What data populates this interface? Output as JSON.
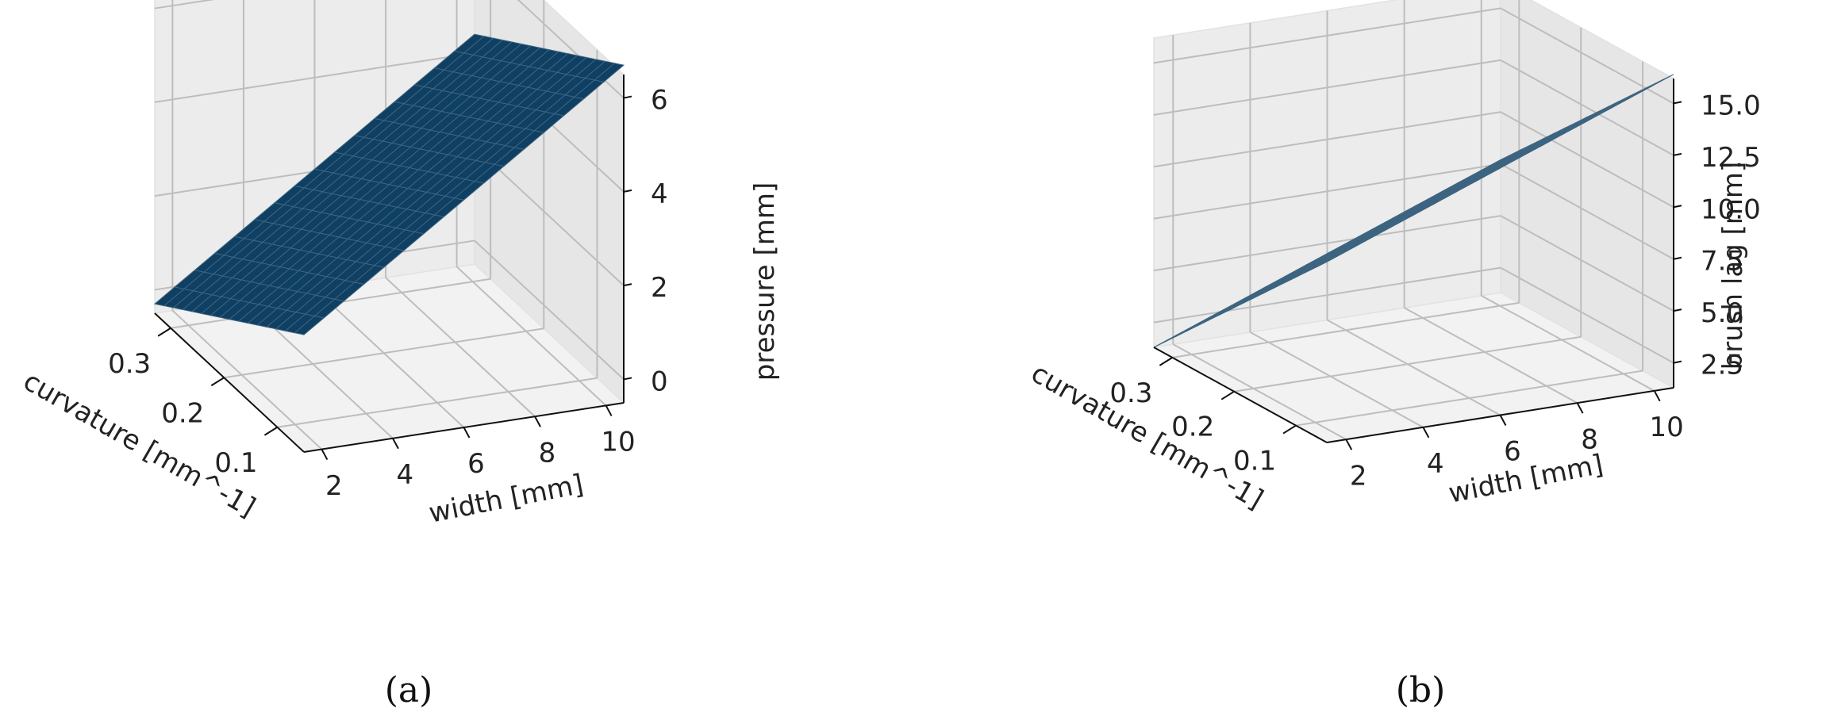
{
  "chart_data": [
    {
      "type": "surface",
      "panel_label": "(a)",
      "x": {
        "label": "curvature [mm^-1]",
        "ticks": [
          "0.1",
          "0.2",
          "0.3"
        ],
        "range": [
          0.05,
          0.33
        ]
      },
      "y": {
        "label": "width [mm]",
        "ticks": [
          "2",
          "4",
          "6",
          "8",
          "10"
        ],
        "range": [
          1.5,
          10.5
        ]
      },
      "z": {
        "label": "pressure [mm]",
        "ticks": [
          "0",
          "2",
          "4",
          "6"
        ],
        "range": [
          -0.5,
          6.5
        ]
      },
      "surface": {
        "corners": [
          {
            "curvature": 0.05,
            "width": 1.5,
            "value": 2.0
          },
          {
            "curvature": 0.33,
            "width": 1.5,
            "value": -0.3
          },
          {
            "curvature": 0.05,
            "width": 10.5,
            "value": 6.7
          },
          {
            "curvature": 0.33,
            "width": 10.5,
            "value": 4.4
          }
        ],
        "color": "#0f3f62"
      },
      "grid": true
    },
    {
      "type": "surface",
      "panel_label": "(b)",
      "x": {
        "label": "curvature [mm^-1]",
        "ticks": [
          "0.1",
          "0.2",
          "0.3"
        ],
        "range": [
          0.05,
          0.33
        ]
      },
      "y": {
        "label": "width [mm]",
        "ticks": [
          "2",
          "4",
          "6",
          "8",
          "10"
        ],
        "range": [
          1.5,
          10.5
        ]
      },
      "z": {
        "label": "brush lag [mm]",
        "ticks": [
          "2.5",
          "5.0",
          "7.5",
          "10.0",
          "12.5",
          "15.0"
        ],
        "range": [
          1.3,
          16.2
        ]
      },
      "surface": {
        "corners": [
          {
            "curvature": 0.05,
            "width": 1.5,
            "value": 10.0
          },
          {
            "curvature": 0.33,
            "width": 1.5,
            "value": 1.3
          },
          {
            "curvature": 0.05,
            "width": 10.5,
            "value": 16.4
          },
          {
            "curvature": 0.33,
            "width": 10.5,
            "value": 7.7
          }
        ],
        "color": "#0e3351"
      },
      "grid": true
    }
  ]
}
